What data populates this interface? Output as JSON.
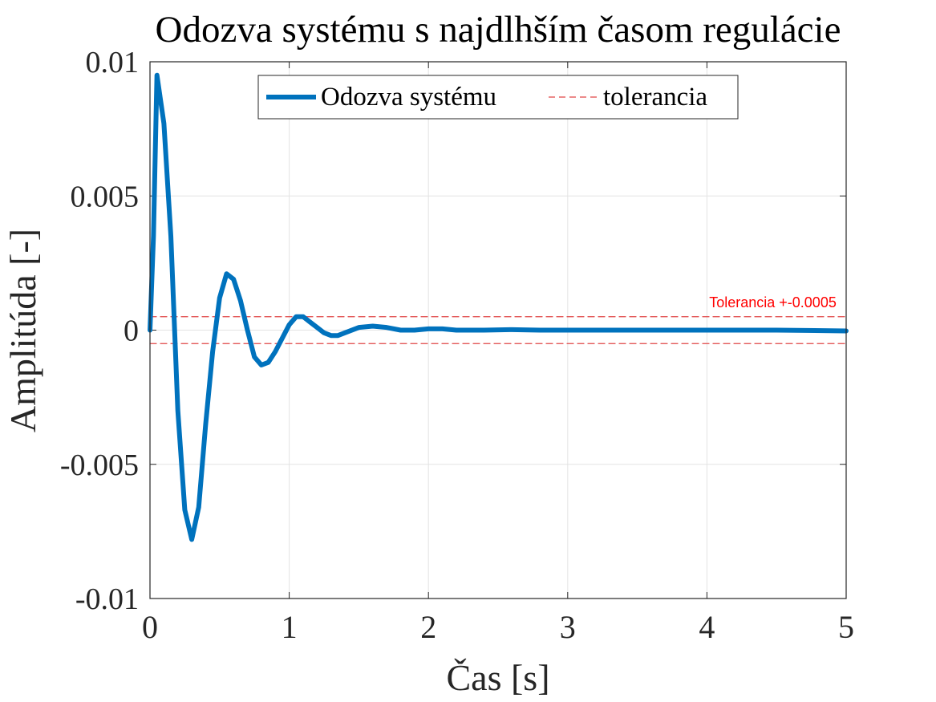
{
  "chart_data": {
    "type": "line",
    "title": "Odozva systému s najdlhším časom regulácie",
    "xlabel": "Čas [s]",
    "ylabel": "Amplitúda [-]",
    "xlim": [
      0,
      5
    ],
    "ylim": [
      -0.01,
      0.01
    ],
    "xticks": [
      0,
      1,
      2,
      3,
      4,
      5
    ],
    "xtick_labels": [
      "0",
      "1",
      "2",
      "3",
      "4",
      "5"
    ],
    "yticks": [
      -0.01,
      -0.005,
      0,
      0.005,
      0.01
    ],
    "ytick_labels": [
      "-0.01",
      "-0.005",
      "0",
      "0.005",
      "0.01"
    ],
    "grid": true,
    "legend_position": "top-center",
    "series": [
      {
        "name": "Odozva systému",
        "color": "#0072BD",
        "style": "solid",
        "x": [
          0,
          0.025,
          0.05,
          0.1,
          0.15,
          0.2,
          0.25,
          0.3,
          0.35,
          0.4,
          0.45,
          0.5,
          0.55,
          0.6,
          0.65,
          0.7,
          0.75,
          0.8,
          0.85,
          0.9,
          0.95,
          1.0,
          1.05,
          1.1,
          1.15,
          1.2,
          1.25,
          1.3,
          1.35,
          1.4,
          1.5,
          1.6,
          1.7,
          1.8,
          1.9,
          2.0,
          2.1,
          2.2,
          2.4,
          2.6,
          2.8,
          3.0,
          3.5,
          4.0,
          4.5,
          5.0
        ],
        "y": [
          0,
          0.0035,
          0.0095,
          0.0077,
          0.0035,
          -0.003,
          -0.0067,
          -0.0078,
          -0.0066,
          -0.0035,
          -0.0008,
          0.0012,
          0.0021,
          0.0019,
          0.0011,
          0.0,
          -0.001,
          -0.0013,
          -0.0012,
          -0.0008,
          -0.0003,
          0.0002,
          0.0005,
          0.0005,
          0.0003,
          0.0001,
          -0.0001,
          -0.0002,
          -0.0002,
          -0.0001,
          0.0001,
          0.00015,
          0.0001,
          0.0,
          0.0,
          5e-05,
          5e-05,
          0.0,
          0.0,
          2e-05,
          0.0,
          0.0,
          0.0,
          0.0,
          0.0,
          -3e-05
        ]
      },
      {
        "name": "tolerancia",
        "color": "#e04646",
        "style": "dashed",
        "x": [
          0,
          5
        ],
        "y": [
          0.0005,
          0.0005
        ]
      },
      {
        "name": "",
        "color": "#e04646",
        "style": "dashed",
        "x": [
          0,
          5
        ],
        "y": [
          -0.0005,
          -0.0005
        ]
      }
    ],
    "annotations": [
      {
        "text": "Tolerancia +-0.0005",
        "x": 4.93,
        "y": 0.00085,
        "color": "#ff0000"
      }
    ]
  }
}
